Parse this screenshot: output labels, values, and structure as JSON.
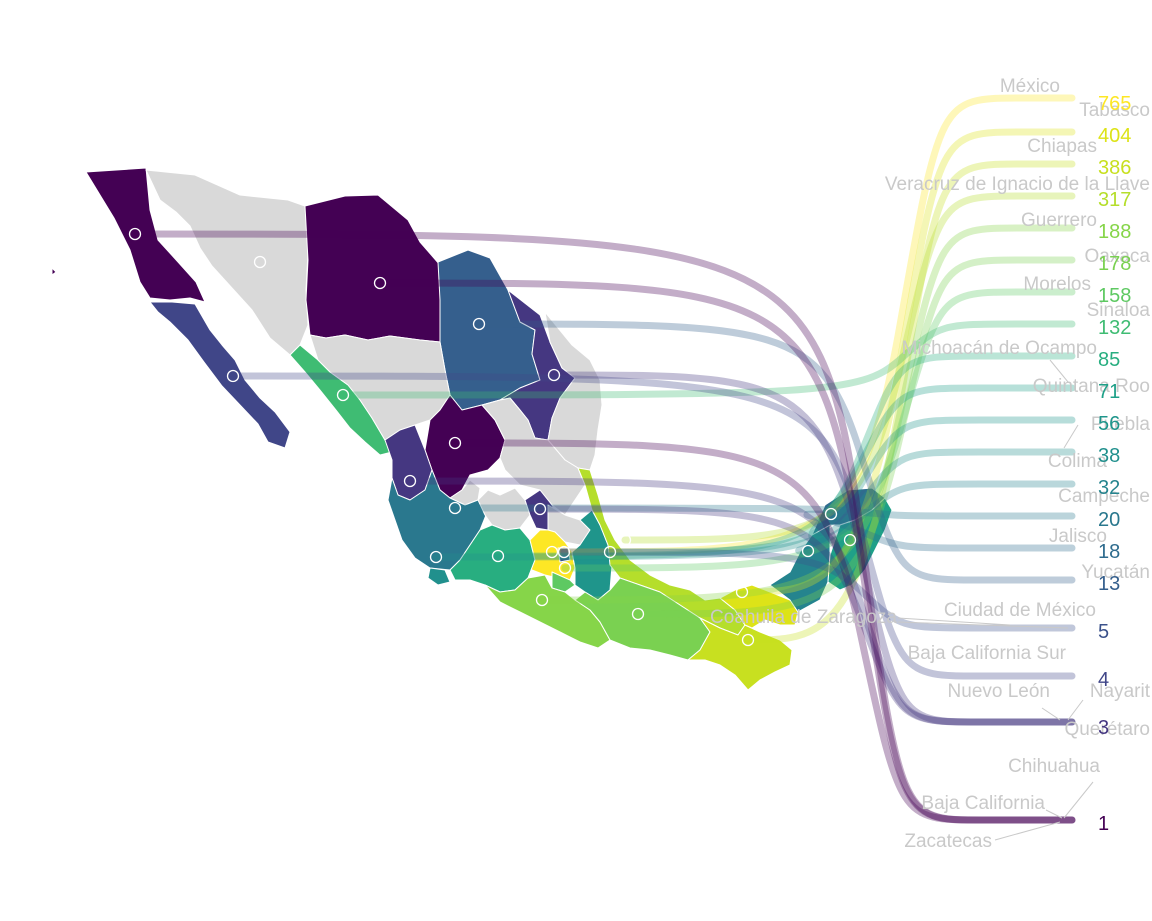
{
  "colors": {
    "background": "#ffffff",
    "no_data": "#d9d9d9",
    "name_label": "#c9c9c9",
    "scale": [
      "#440154",
      "#3b528b",
      "#21918c",
      "#5ec962",
      "#fde725"
    ]
  },
  "map": {
    "entries": [
      {
        "state": "México",
        "value": 765,
        "color": "#fde725"
      },
      {
        "state": "Tabasco",
        "value": 404,
        "color": "#dde318"
      },
      {
        "state": "Chiapas",
        "value": 386,
        "color": "#c8e020"
      },
      {
        "state": "Veracruz de Ignacio de la Llave",
        "value": 317,
        "color": "#b5de2b"
      },
      {
        "state": "Guerrero",
        "value": 188,
        "color": "#86d549"
      },
      {
        "state": "Oaxaca",
        "value": 178,
        "color": "#7ad151"
      },
      {
        "state": "Morelos",
        "value": 158,
        "color": "#5ec962"
      },
      {
        "state": "Sinaloa",
        "value": 132,
        "color": "#3fbc73"
      },
      {
        "state": "Michoacán de Ocampo",
        "value": 85,
        "color": "#28ae80"
      },
      {
        "state": "Quintana Roo",
        "value": 71,
        "color": "#1fa088"
      },
      {
        "state": "Puebla",
        "value": 56,
        "color": "#1f958b"
      },
      {
        "state": "Colima",
        "value": 38,
        "color": "#21908d"
      },
      {
        "state": "Campeche",
        "value": 32,
        "color": "#25848e"
      },
      {
        "state": "Jalisco",
        "value": 20,
        "color": "#2a788e"
      },
      {
        "state": "Yucatán",
        "value": 18,
        "color": "#2f6c8e"
      },
      {
        "state": "Coahuila de Zaragoza",
        "value": 13,
        "color": "#355f8d"
      },
      {
        "state": "Ciudad de México",
        "value": 5,
        "color": "#3b528b"
      },
      {
        "state": "Baja California Sur",
        "value": 4,
        "color": "#404688"
      },
      {
        "state": "Nuevo León",
        "value": 3,
        "color": "#453781"
      },
      {
        "state": "Nayarit",
        "value": 3,
        "color": "#453781"
      },
      {
        "state": "Querétaro",
        "value": 3,
        "color": "#453781"
      },
      {
        "state": "Chihuahua",
        "value": 1,
        "color": "#440154"
      },
      {
        "state": "Baja California",
        "value": 1,
        "color": "#440154"
      },
      {
        "state": "Zacatecas",
        "value": 1,
        "color": "#440154"
      }
    ],
    "value_labels": [
      "765",
      "404",
      "386",
      "317",
      "188",
      "178",
      "158",
      "132",
      "85",
      "71",
      "56",
      "38",
      "32",
      "20",
      "18",
      "13",
      "5",
      "4",
      "3",
      "1"
    ]
  }
}
